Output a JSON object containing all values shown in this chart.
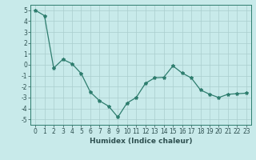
{
  "x": [
    0,
    1,
    2,
    3,
    4,
    5,
    6,
    7,
    8,
    9,
    10,
    11,
    12,
    13,
    14,
    15,
    16,
    17,
    18,
    19,
    20,
    21,
    22,
    23
  ],
  "y": [
    5.0,
    4.5,
    -0.3,
    0.5,
    0.1,
    -0.8,
    -2.5,
    -3.3,
    -3.8,
    -4.8,
    -3.5,
    -3.0,
    -1.7,
    -1.2,
    -1.15,
    -0.1,
    -0.75,
    -1.2,
    -2.3,
    -2.7,
    -3.0,
    -2.7,
    -2.65,
    -2.6
  ],
  "line_color": "#2e7d6e",
  "marker": "*",
  "markersize": 3,
  "linewidth": 0.9,
  "background_color": "#c8eaea",
  "grid_color": "#aacece",
  "xlabel": "Humidex (Indice chaleur)",
  "xlim": [
    -0.5,
    23.5
  ],
  "ylim": [
    -5.5,
    5.5
  ],
  "yticks": [
    -5,
    -4,
    -3,
    -2,
    -1,
    0,
    1,
    2,
    3,
    4,
    5
  ],
  "xticks": [
    0,
    1,
    2,
    3,
    4,
    5,
    6,
    7,
    8,
    9,
    10,
    11,
    12,
    13,
    14,
    15,
    16,
    17,
    18,
    19,
    20,
    21,
    22,
    23
  ],
  "tick_fontsize": 5.5,
  "xlabel_fontsize": 6.5,
  "tick_color": "#2e5050",
  "spine_color": "#2e7d6e"
}
